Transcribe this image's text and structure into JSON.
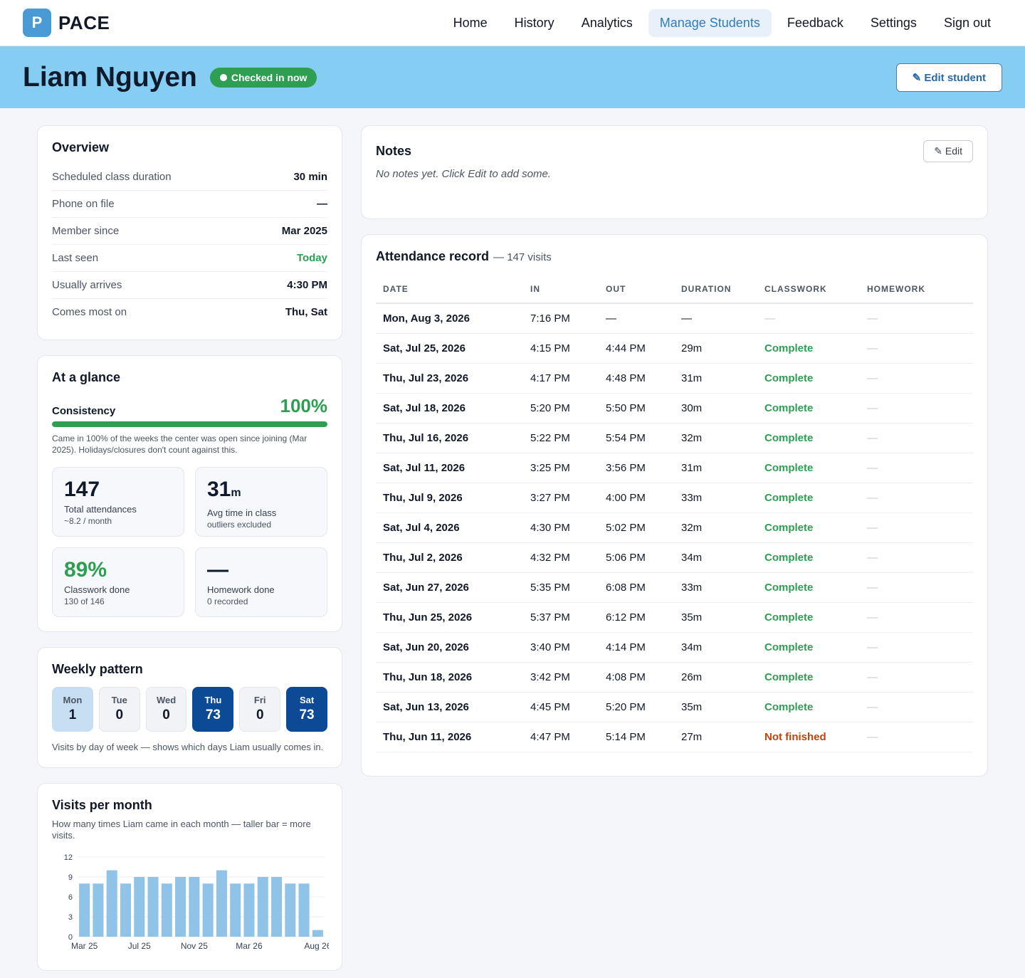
{
  "app": {
    "logo_letter": "P",
    "logo_text": "PACE"
  },
  "nav": {
    "items": [
      {
        "label": "Home",
        "active": false,
        "name": "nav-home"
      },
      {
        "label": "History",
        "active": false,
        "name": "nav-history"
      },
      {
        "label": "Analytics",
        "active": false,
        "name": "nav-analytics"
      },
      {
        "label": "Manage Students",
        "active": true,
        "name": "nav-manage-students"
      },
      {
        "label": "Feedback",
        "active": false,
        "name": "nav-feedback"
      },
      {
        "label": "Settings",
        "active": false,
        "name": "nav-settings"
      },
      {
        "label": "Sign out",
        "active": false,
        "name": "nav-sign-out"
      }
    ]
  },
  "student": {
    "name": "Liam Nguyen",
    "status": "Checked in now",
    "edit_label": "✎ Edit student"
  },
  "overview": {
    "title": "Overview",
    "rows": [
      {
        "label": "Scheduled class duration",
        "value": "30 min",
        "highlight": false
      },
      {
        "label": "Phone on file",
        "value": "—",
        "highlight": false
      },
      {
        "label": "Member since",
        "value": "Mar 2025",
        "highlight": false
      },
      {
        "label": "Last seen",
        "value": "Today",
        "highlight": true
      },
      {
        "label": "Usually arrives",
        "value": "4:30 PM",
        "highlight": false
      },
      {
        "label": "Comes most on",
        "value": "Thu, Sat",
        "highlight": false
      }
    ]
  },
  "glance": {
    "title": "At a glance",
    "consistency_label": "Consistency",
    "consistency_value": "100%",
    "consistency_fraction": 1.0,
    "consistency_note": "Came in 100% of the weeks the center was open since joining (Mar 2025). Holidays/closures don't count against this.",
    "total": {
      "value": "147",
      "label": "Total attendances",
      "sub": "~8.2 / month"
    },
    "avg": {
      "value": "31",
      "unit": "m",
      "label": "Avg time in class",
      "sub": "outliers excluded"
    },
    "classwork": {
      "value": "89%",
      "label": "Classwork done",
      "sub": "130 of 146"
    },
    "homework": {
      "value": "—",
      "label": "Homework done",
      "sub": "0 recorded"
    }
  },
  "weekly": {
    "title": "Weekly pattern",
    "days": [
      {
        "name": "Mon",
        "count": "1",
        "style": "light"
      },
      {
        "name": "Tue",
        "count": "0",
        "style": "none"
      },
      {
        "name": "Wed",
        "count": "0",
        "style": "none"
      },
      {
        "name": "Thu",
        "count": "73",
        "style": "dark"
      },
      {
        "name": "Fri",
        "count": "0",
        "style": "none"
      },
      {
        "name": "Sat",
        "count": "73",
        "style": "dark"
      }
    ],
    "note": "Visits by day of week — shows which days Liam usually comes in."
  },
  "visits": {
    "title": "Visits per month",
    "subtitle": "How many times Liam came in each month — taller bar = more visits."
  },
  "chart_data": {
    "type": "bar",
    "categories": [
      "Mar 25",
      "Apr 25",
      "May 25",
      "Jun 25",
      "Jul 25",
      "Aug 25",
      "Sep 25",
      "Oct 25",
      "Nov 25",
      "Dec 25",
      "Jan 26",
      "Feb 26",
      "Mar 26",
      "Apr 26",
      "May 26",
      "Jun 26",
      "Jul 26",
      "Aug 26"
    ],
    "values": [
      8,
      8,
      10,
      8,
      9,
      9,
      8,
      9,
      9,
      8,
      10,
      8,
      8,
      9,
      9,
      8,
      8,
      1
    ],
    "xtick_labels": [
      "Mar 25",
      "Jul 25",
      "Nov 25",
      "Mar 26",
      "Aug 26"
    ],
    "yticks": [
      0,
      3,
      6,
      9,
      12
    ],
    "ylim": [
      0,
      12
    ],
    "bar_color": "#8fc3e8",
    "grid": true
  },
  "notes": {
    "title": "Notes",
    "edit_label": "✎ Edit",
    "text": "No notes yet. Click Edit to add some."
  },
  "attendance": {
    "title": "Attendance record",
    "count": "— 147 visits",
    "columns": [
      "DATE",
      "IN",
      "OUT",
      "DURATION",
      "CLASSWORK",
      "HOMEWORK"
    ],
    "rows": [
      {
        "date": "Mon, Aug 3, 2026",
        "in": "7:16 PM",
        "out": "—",
        "duration": "—",
        "classwork": "—",
        "homework": "—",
        "status": "none"
      },
      {
        "date": "Sat, Jul 25, 2026",
        "in": "4:15 PM",
        "out": "4:44 PM",
        "duration": "29m",
        "classwork": "Complete",
        "homework": "—",
        "status": "complete"
      },
      {
        "date": "Thu, Jul 23, 2026",
        "in": "4:17 PM",
        "out": "4:48 PM",
        "duration": "31m",
        "classwork": "Complete",
        "homework": "—",
        "status": "complete"
      },
      {
        "date": "Sat, Jul 18, 2026",
        "in": "5:20 PM",
        "out": "5:50 PM",
        "duration": "30m",
        "classwork": "Complete",
        "homework": "—",
        "status": "complete"
      },
      {
        "date": "Thu, Jul 16, 2026",
        "in": "5:22 PM",
        "out": "5:54 PM",
        "duration": "32m",
        "classwork": "Complete",
        "homework": "—",
        "status": "complete"
      },
      {
        "date": "Sat, Jul 11, 2026",
        "in": "3:25 PM",
        "out": "3:56 PM",
        "duration": "31m",
        "classwork": "Complete",
        "homework": "—",
        "status": "complete"
      },
      {
        "date": "Thu, Jul 9, 2026",
        "in": "3:27 PM",
        "out": "4:00 PM",
        "duration": "33m",
        "classwork": "Complete",
        "homework": "—",
        "status": "complete"
      },
      {
        "date": "Sat, Jul 4, 2026",
        "in": "4:30 PM",
        "out": "5:02 PM",
        "duration": "32m",
        "classwork": "Complete",
        "homework": "—",
        "status": "complete"
      },
      {
        "date": "Thu, Jul 2, 2026",
        "in": "4:32 PM",
        "out": "5:06 PM",
        "duration": "34m",
        "classwork": "Complete",
        "homework": "—",
        "status": "complete"
      },
      {
        "date": "Sat, Jun 27, 2026",
        "in": "5:35 PM",
        "out": "6:08 PM",
        "duration": "33m",
        "classwork": "Complete",
        "homework": "—",
        "status": "complete"
      },
      {
        "date": "Thu, Jun 25, 2026",
        "in": "5:37 PM",
        "out": "6:12 PM",
        "duration": "35m",
        "classwork": "Complete",
        "homework": "—",
        "status": "complete"
      },
      {
        "date": "Sat, Jun 20, 2026",
        "in": "3:40 PM",
        "out": "4:14 PM",
        "duration": "34m",
        "classwork": "Complete",
        "homework": "—",
        "status": "complete"
      },
      {
        "date": "Thu, Jun 18, 2026",
        "in": "3:42 PM",
        "out": "4:08 PM",
        "duration": "26m",
        "classwork": "Complete",
        "homework": "—",
        "status": "complete"
      },
      {
        "date": "Sat, Jun 13, 2026",
        "in": "4:45 PM",
        "out": "5:20 PM",
        "duration": "35m",
        "classwork": "Complete",
        "homework": "—",
        "status": "complete"
      },
      {
        "date": "Thu, Jun 11, 2026",
        "in": "4:47 PM",
        "out": "5:14 PM",
        "duration": "27m",
        "classwork": "Not finished",
        "homework": "—",
        "status": "notfinished"
      }
    ]
  }
}
